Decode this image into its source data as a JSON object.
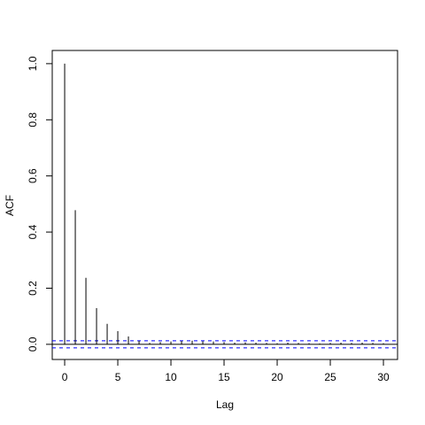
{
  "chart_data": {
    "type": "acf",
    "x_label": "Lag",
    "y_label": "ACF",
    "x": [
      0,
      1,
      2,
      3,
      4,
      5,
      6,
      7,
      8,
      9,
      10,
      11,
      12,
      13,
      14,
      15,
      16,
      17,
      18,
      19,
      20,
      21,
      22,
      23,
      24,
      25,
      26,
      27,
      28,
      29,
      30
    ],
    "values": [
      1.0,
      0.478,
      0.237,
      0.129,
      0.073,
      0.047,
      0.028,
      0.012,
      0.005,
      0.008,
      0.01,
      0.012,
      0.013,
      0.011,
      0.01,
      0.008,
      0.006,
      0.007,
      0.006,
      0.005,
      0.004,
      0.006,
      0.005,
      0.004,
      0.003,
      0.005,
      0.006,
      0.005,
      0.006,
      0.005,
      0.004
    ],
    "color": "#000000",
    "xlim": [
      -1.17,
      31.33
    ],
    "ylim": [
      -0.054,
      1.047
    ],
    "xticks": [
      0,
      5,
      10,
      15,
      20,
      25,
      30
    ],
    "yticks": [
      {
        "value": 0,
        "label": "0.0"
      },
      0.2,
      0.4,
      0.6,
      0.8,
      {
        "value": 1,
        "label": "1.0"
      }
    ],
    "zero_line": 0,
    "conf_lines": [
      0.0126,
      -0.0126
    ],
    "conf_color": "#0000ff"
  }
}
